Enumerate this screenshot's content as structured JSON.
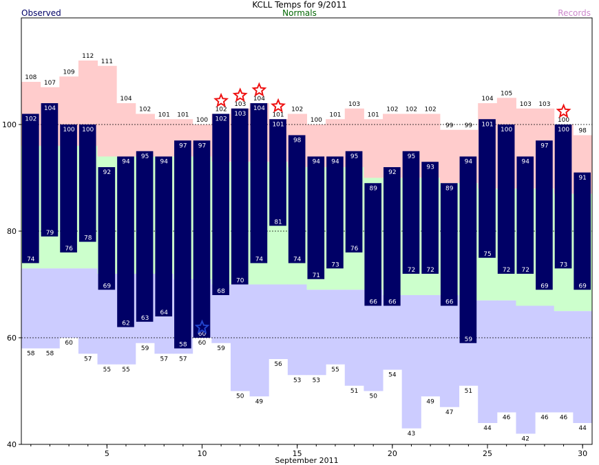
{
  "header": {
    "title": "KCLL Temps for 9/2011",
    "observed_label": "Observed",
    "normals_label": "Normals",
    "records_label": "Records"
  },
  "colors": {
    "observed_bar": "#000066",
    "record_band": "#ffcccc",
    "normal_band": "#ccffcc",
    "record_low_band": "#ccccff",
    "record_star": "#ee1111",
    "record_low_star": "#2244cc",
    "observed_text": "#000066",
    "normals_text": "#006600",
    "records_text": "#cc88cc"
  },
  "chart_data": {
    "type": "bar",
    "title": "KCLL Temps for 9/2011",
    "xlabel": "September 2011",
    "ylabel": "",
    "x_ticks": [
      "5",
      "10",
      "15",
      "20",
      "25",
      "30"
    ],
    "y_ticks": [
      "40",
      "60",
      "80",
      "100"
    ],
    "xlim": [
      0.5,
      30.5
    ],
    "ylim": [
      40,
      120
    ],
    "grid_dashed_at": [
      60,
      80,
      100
    ],
    "legend": [
      "Observed",
      "Normals",
      "Records"
    ],
    "days": [
      1,
      2,
      3,
      4,
      5,
      6,
      7,
      8,
      9,
      10,
      11,
      12,
      13,
      14,
      15,
      16,
      17,
      18,
      19,
      20,
      21,
      22,
      23,
      24,
      25,
      26,
      27,
      28,
      29,
      30
    ],
    "observed_high": [
      102,
      104,
      100,
      100,
      92,
      94,
      95,
      94,
      97,
      97,
      102,
      103,
      104,
      101,
      98,
      94,
      94,
      95,
      89,
      92,
      95,
      93,
      89,
      94,
      101,
      100,
      94,
      97,
      100,
      91
    ],
    "observed_low": [
      74,
      79,
      76,
      78,
      69,
      62,
      63,
      64,
      58,
      60,
      68,
      70,
      74,
      81,
      74,
      71,
      73,
      76,
      66,
      66,
      72,
      72,
      66,
      59,
      75,
      72,
      72,
      69,
      73,
      69
    ],
    "record_high": [
      108,
      107,
      109,
      112,
      111,
      104,
      102,
      101,
      101,
      100,
      102,
      103,
      104,
      101,
      102,
      100,
      101,
      103,
      101,
      102,
      102,
      102,
      99,
      99,
      104,
      105,
      103,
      103,
      100,
      98
    ],
    "record_low": [
      58,
      58,
      60,
      57,
      55,
      55,
      59,
      57,
      57,
      60,
      59,
      50,
      49,
      56,
      53,
      53,
      55,
      51,
      50,
      54,
      43,
      49,
      47,
      51,
      44,
      46,
      42,
      46,
      46,
      44
    ],
    "normal_high": [
      96,
      96,
      96,
      96,
      94,
      94,
      94,
      94,
      94,
      94,
      93,
      93,
      93,
      93,
      92,
      92,
      92,
      92,
      90,
      90,
      90,
      90,
      89,
      89,
      88,
      88,
      88,
      88,
      87,
      87
    ],
    "normal_low": [
      73,
      73,
      73,
      73,
      72,
      72,
      72,
      72,
      71,
      71,
      70,
      70,
      70,
      70,
      70,
      69,
      69,
      69,
      69,
      68,
      68,
      68,
      68,
      67,
      67,
      67,
      66,
      66,
      65,
      65
    ],
    "new_record_highs": [
      11,
      12,
      13,
      14,
      29
    ],
    "new_record_lows": [
      10
    ]
  }
}
